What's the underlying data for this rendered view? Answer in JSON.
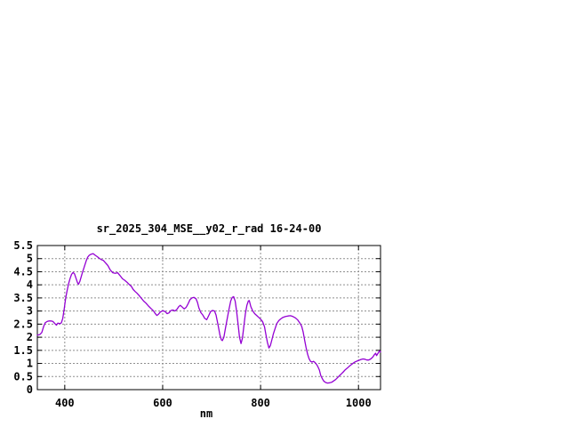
{
  "window": {
    "background": "#ffffff"
  },
  "chart_data": {
    "type": "line",
    "title": "sr_2025_304_MSE__y02_r_rad 16-24-00",
    "xlabel": "nm",
    "ylabel": "",
    "xlim": [
      344,
      1045
    ],
    "ylim": [
      0,
      5.5
    ],
    "x_ticks": [
      400,
      600,
      800,
      1000
    ],
    "x_tick_labels": [
      "400",
      "600",
      "800",
      "1000"
    ],
    "y_ticks": [
      0,
      0.5,
      1,
      1.5,
      2,
      2.5,
      3,
      3.5,
      4,
      4.5,
      5,
      5.5
    ],
    "y_tick_labels": [
      "0",
      "0.5",
      "1",
      "1.5",
      "2",
      "2.5",
      "3",
      "3.5",
      "4",
      "4.5",
      "5",
      "5.5"
    ],
    "grid": true,
    "legend": false,
    "line_color": "#9400d3",
    "grid_color": "#8f8f8f",
    "series": [
      {
        "points": [
          [
            344,
            2.08
          ],
          [
            349,
            2.1
          ],
          [
            353,
            2.18
          ],
          [
            357,
            2.42
          ],
          [
            360,
            2.55
          ],
          [
            364,
            2.6
          ],
          [
            368,
            2.62
          ],
          [
            372,
            2.62
          ],
          [
            376,
            2.6
          ],
          [
            380,
            2.52
          ],
          [
            383,
            2.46
          ],
          [
            386,
            2.54
          ],
          [
            390,
            2.52
          ],
          [
            393,
            2.55
          ],
          [
            396,
            2.72
          ],
          [
            399,
            3.1
          ],
          [
            402,
            3.5
          ],
          [
            405,
            3.8
          ],
          [
            408,
            4.05
          ],
          [
            411,
            4.25
          ],
          [
            414,
            4.4
          ],
          [
            417,
            4.47
          ],
          [
            420,
            4.42
          ],
          [
            423,
            4.25
          ],
          [
            426,
            4.08
          ],
          [
            428,
            4.02
          ],
          [
            431,
            4.14
          ],
          [
            435,
            4.4
          ],
          [
            438,
            4.58
          ],
          [
            441,
            4.75
          ],
          [
            444,
            4.93
          ],
          [
            447,
            5.06
          ],
          [
            450,
            5.13
          ],
          [
            454,
            5.17
          ],
          [
            458,
            5.19
          ],
          [
            462,
            5.13
          ],
          [
            466,
            5.08
          ],
          [
            470,
            5.02
          ],
          [
            474,
            4.97
          ],
          [
            479,
            4.93
          ],
          [
            484,
            4.82
          ],
          [
            488,
            4.74
          ],
          [
            493,
            4.57
          ],
          [
            498,
            4.46
          ],
          [
            503,
            4.44
          ],
          [
            508,
            4.46
          ],
          [
            513,
            4.35
          ],
          [
            518,
            4.23
          ],
          [
            522,
            4.18
          ],
          [
            527,
            4.1
          ],
          [
            532,
            4.01
          ],
          [
            536,
            3.94
          ],
          [
            540,
            3.82
          ],
          [
            544,
            3.74
          ],
          [
            547,
            3.69
          ],
          [
            551,
            3.61
          ],
          [
            556,
            3.5
          ],
          [
            561,
            3.38
          ],
          [
            566,
            3.3
          ],
          [
            571,
            3.19
          ],
          [
            576,
            3.1
          ],
          [
            581,
            3.01
          ],
          [
            585,
            2.9
          ],
          [
            588,
            2.83
          ],
          [
            591,
            2.87
          ],
          [
            595,
            2.96
          ],
          [
            600,
            3.01
          ],
          [
            605,
            2.98
          ],
          [
            609,
            2.9
          ],
          [
            613,
            2.93
          ],
          [
            617,
            3.02
          ],
          [
            621,
            3.04
          ],
          [
            625,
            3.0
          ],
          [
            629,
            3.06
          ],
          [
            633,
            3.17
          ],
          [
            636,
            3.22
          ],
          [
            640,
            3.15
          ],
          [
            644,
            3.08
          ],
          [
            648,
            3.14
          ],
          [
            652,
            3.28
          ],
          [
            656,
            3.44
          ],
          [
            660,
            3.5
          ],
          [
            664,
            3.52
          ],
          [
            668,
            3.47
          ],
          [
            671,
            3.33
          ],
          [
            674,
            3.12
          ],
          [
            678,
            2.94
          ],
          [
            682,
            2.85
          ],
          [
            686,
            2.72
          ],
          [
            690,
            2.67
          ],
          [
            694,
            2.82
          ],
          [
            698,
            2.98
          ],
          [
            702,
            3.02
          ],
          [
            706,
            3.0
          ],
          [
            709,
            2.85
          ],
          [
            713,
            2.48
          ],
          [
            717,
            2.08
          ],
          [
            720,
            1.9
          ],
          [
            722,
            1.87
          ],
          [
            725,
            2.0
          ],
          [
            728,
            2.31
          ],
          [
            731,
            2.62
          ],
          [
            735,
            3.02
          ],
          [
            739,
            3.38
          ],
          [
            742,
            3.52
          ],
          [
            745,
            3.55
          ],
          [
            748,
            3.38
          ],
          [
            751,
            3.0
          ],
          [
            754,
            2.5
          ],
          [
            757,
            2.0
          ],
          [
            760,
            1.76
          ],
          [
            763,
            1.97
          ],
          [
            766,
            2.45
          ],
          [
            769,
            2.9
          ],
          [
            772,
            3.22
          ],
          [
            775,
            3.38
          ],
          [
            777,
            3.4
          ],
          [
            780,
            3.17
          ],
          [
            784,
            3.0
          ],
          [
            788,
            2.9
          ],
          [
            792,
            2.83
          ],
          [
            796,
            2.76
          ],
          [
            800,
            2.69
          ],
          [
            804,
            2.6
          ],
          [
            808,
            2.4
          ],
          [
            811,
            2.1
          ],
          [
            814,
            1.8
          ],
          [
            817,
            1.59
          ],
          [
            820,
            1.68
          ],
          [
            823,
            1.9
          ],
          [
            826,
            2.12
          ],
          [
            829,
            2.3
          ],
          [
            833,
            2.52
          ],
          [
            837,
            2.63
          ],
          [
            841,
            2.7
          ],
          [
            846,
            2.76
          ],
          [
            851,
            2.79
          ],
          [
            856,
            2.81
          ],
          [
            861,
            2.82
          ],
          [
            866,
            2.79
          ],
          [
            871,
            2.74
          ],
          [
            876,
            2.66
          ],
          [
            880,
            2.55
          ],
          [
            884,
            2.42
          ],
          [
            887,
            2.2
          ],
          [
            890,
            1.88
          ],
          [
            893,
            1.6
          ],
          [
            896,
            1.35
          ],
          [
            899,
            1.18
          ],
          [
            902,
            1.08
          ],
          [
            905,
            1.05
          ],
          [
            908,
            1.08
          ],
          [
            911,
            1.04
          ],
          [
            914,
            0.97
          ],
          [
            917,
            0.88
          ],
          [
            920,
            0.75
          ],
          [
            923,
            0.54
          ],
          [
            926,
            0.42
          ],
          [
            929,
            0.33
          ],
          [
            933,
            0.27
          ],
          [
            937,
            0.25
          ],
          [
            941,
            0.26
          ],
          [
            945,
            0.28
          ],
          [
            949,
            0.33
          ],
          [
            953,
            0.38
          ],
          [
            957,
            0.45
          ],
          [
            961,
            0.53
          ],
          [
            965,
            0.6
          ],
          [
            969,
            0.68
          ],
          [
            973,
            0.76
          ],
          [
            977,
            0.82
          ],
          [
            981,
            0.89
          ],
          [
            985,
            0.95
          ],
          [
            989,
            1.01
          ],
          [
            993,
            1.06
          ],
          [
            997,
            1.09
          ],
          [
            1001,
            1.12
          ],
          [
            1005,
            1.15
          ],
          [
            1009,
            1.17
          ],
          [
            1013,
            1.16
          ],
          [
            1017,
            1.13
          ],
          [
            1021,
            1.13
          ],
          [
            1025,
            1.17
          ],
          [
            1029,
            1.24
          ],
          [
            1032,
            1.32
          ],
          [
            1035,
            1.39
          ],
          [
            1037,
            1.3
          ],
          [
            1040,
            1.39
          ],
          [
            1043,
            1.48
          ],
          [
            1045,
            1.44
          ]
        ]
      }
    ]
  }
}
